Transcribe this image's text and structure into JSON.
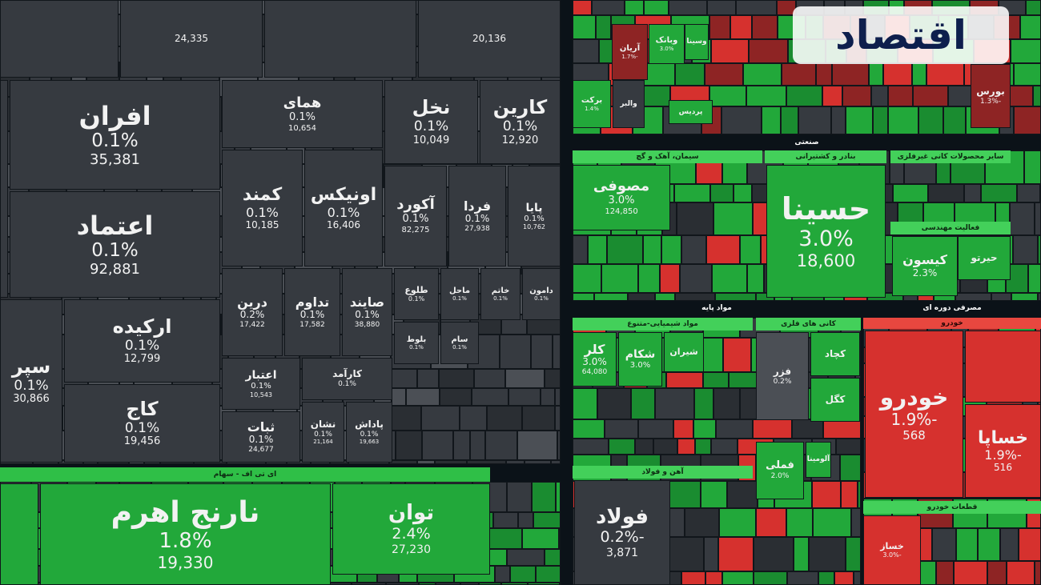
{
  "brand": "اقتصاد",
  "sections": [
    {
      "label": "ای تی اف - سهام"
    },
    {
      "label": "صنعتی"
    },
    {
      "label": "سیمان، آهک و گچ"
    },
    {
      "label": "بنادر و کشتیرانی"
    },
    {
      "label": "سایر محصولات کانی غیرفلزی"
    },
    {
      "label": "فعالیت مهندسی"
    },
    {
      "label": "مواد پایه"
    },
    {
      "label": "مواد شیمیایی-متنوع"
    },
    {
      "label": "کانی های فلزی"
    },
    {
      "label": "آهن و فولاد"
    },
    {
      "label": "مصرفی دوره ای"
    },
    {
      "label": "خودرو"
    },
    {
      "label": "قطعات خودرو"
    }
  ],
  "tiles": [
    {
      "volume": "24,335"
    },
    {
      "volume": "20,136"
    },
    {
      "name": "افران",
      "change": "0.1%",
      "volume": "35,381"
    },
    {
      "name": "اعتماد",
      "change": "0.1%",
      "volume": "92,881"
    },
    {
      "name": "همای",
      "change": "0.1%",
      "volume": "10,654"
    },
    {
      "name": "نخل",
      "change": "0.1%",
      "volume": "10,049"
    },
    {
      "name": "کارین",
      "change": "0.1%",
      "volume": "12,920"
    },
    {
      "name": "کمند",
      "change": "0.1%",
      "volume": "10,185"
    },
    {
      "name": "اونیکس",
      "change": "0.1%",
      "volume": "16,406"
    },
    {
      "name": "آکورد",
      "change": "0.1%",
      "volume": "82,275"
    },
    {
      "name": "فردا",
      "change": "0.1%",
      "volume": "27,938"
    },
    {
      "name": "پایا",
      "change": "0.1%",
      "volume": "10,762"
    },
    {
      "name": "ارکیده",
      "change": "0.1%",
      "volume": "12,799"
    },
    {
      "name": "سپر",
      "change": "0.1%",
      "volume": "30,866"
    },
    {
      "name": "کاج",
      "change": "0.1%",
      "volume": "19,456"
    },
    {
      "name": "درین",
      "change": "0.2%",
      "volume": "17,422"
    },
    {
      "name": "تداوم",
      "change": "0.1%",
      "volume": "17,582"
    },
    {
      "name": "صایند",
      "change": "0.1%",
      "volume": "38,880"
    },
    {
      "name": "طلوع",
      "change": "0.1%"
    },
    {
      "name": "ماحل",
      "change": "0.1%"
    },
    {
      "name": "خاتم",
      "change": "0.1%"
    },
    {
      "name": "دامون",
      "change": "0.1%"
    },
    {
      "name": "اعتبار",
      "change": "0.1%",
      "volume": "10,543"
    },
    {
      "name": "کارآمد",
      "change": "0.1%"
    },
    {
      "name": "ثبات",
      "change": "0.1%",
      "volume": "24,677"
    },
    {
      "name": "نشان",
      "change": "0.1%",
      "volume": "21,164"
    },
    {
      "name": "پاداش",
      "change": "0.1%",
      "volume": "19,663"
    },
    {
      "name": "بلوط",
      "change": "0.1%"
    },
    {
      "name": "سام",
      "change": "0.1%"
    },
    {
      "name": "نارنج اهرم",
      "change": "1.8%",
      "volume": "19,330"
    },
    {
      "name": "توان",
      "change": "2.4%",
      "volume": "27,230"
    },
    {
      "name": "حسینا",
      "change": "3.0%",
      "volume": "18,600"
    },
    {
      "name": "مصوفی",
      "change": "3.0%",
      "volume": "124,850"
    },
    {
      "name": "کیسون",
      "change": "2.3%"
    },
    {
      "name": "حیرتو"
    },
    {
      "name": "کلر",
      "change": "3.0%",
      "volume": "64,080"
    },
    {
      "name": "شکام",
      "change": "3.0%"
    },
    {
      "name": "شیران"
    },
    {
      "name": "کچاد"
    },
    {
      "name": "فزر",
      "change": "0.2%"
    },
    {
      "name": "کگل"
    },
    {
      "name": "فملی",
      "change": "2.0%"
    },
    {
      "name": "آلومینا"
    },
    {
      "name": "فولاد",
      "change": "-0.2%",
      "volume": "3,871"
    },
    {
      "name": "خودرو",
      "change": "-1.9%",
      "volume": "568"
    },
    {
      "name": "خساپا",
      "change": "-1.9%",
      "volume": "516"
    },
    {
      "name": "خساز",
      "change": "-3.0%"
    },
    {
      "name": "بورس",
      "change": "-1.3%"
    },
    {
      "name": "آریان",
      "change": "-1.7%"
    },
    {
      "name": "وبانک",
      "change": "3.0%"
    },
    {
      "name": "برکت",
      "change": "1.4%"
    },
    {
      "name": "والبر"
    },
    {
      "name": "پردیس"
    },
    {
      "name": "وسینا"
    }
  ]
}
